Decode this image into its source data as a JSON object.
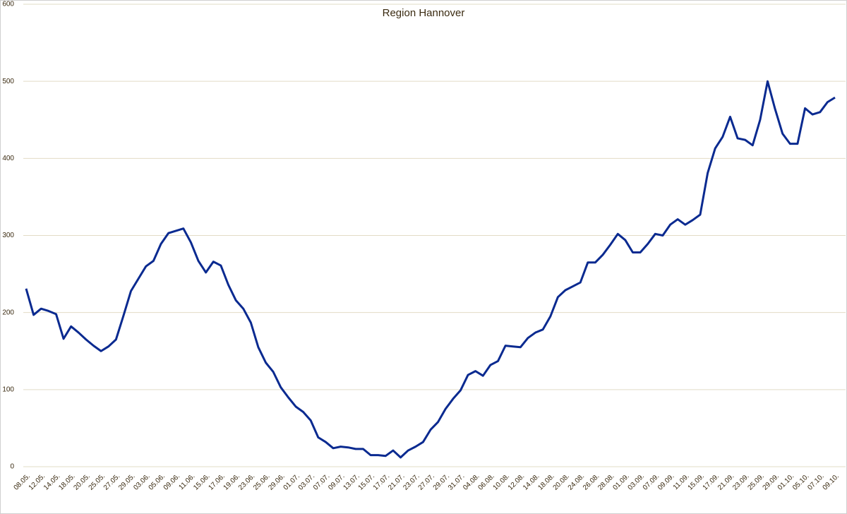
{
  "chart_data": {
    "type": "line",
    "title": "Region Hannover",
    "categories": [
      "08.05.",
      null,
      "12.05.",
      null,
      "14.05.",
      null,
      "18.05.",
      null,
      "20.05.",
      null,
      "25.05.",
      null,
      "27.05.",
      null,
      "29.05.",
      null,
      "03.06.",
      null,
      "05.06.",
      null,
      "09.06.",
      null,
      "11.06.",
      null,
      "15.06.",
      null,
      "17.06.",
      null,
      "19.06.",
      null,
      "23.06.",
      null,
      "25.06.",
      null,
      "29.06.",
      null,
      "01.07.",
      null,
      "03.07.",
      null,
      "07.07.",
      null,
      "09.07.",
      null,
      "13.07.",
      null,
      "15.07.",
      null,
      "17.07.",
      null,
      "21.07.",
      null,
      "23.07.",
      null,
      "27.07.",
      null,
      "29.07.",
      null,
      "31.07.",
      null,
      "04.08.",
      null,
      "06.08.",
      null,
      "10.08.",
      null,
      "12.08.",
      null,
      "14.08.",
      null,
      "18.08.",
      null,
      "20.08.",
      null,
      "24.08.",
      null,
      "26.08.",
      null,
      "28.08.",
      null,
      "01.09.",
      null,
      "03.09.",
      null,
      "07.09.",
      null,
      "09.09.",
      null,
      "11.09.",
      null,
      "15.09.",
      null,
      "17.09.",
      null,
      "21.09.",
      null,
      "23.09.",
      null,
      "25.09.",
      null,
      "29.09.",
      null,
      "01.10.",
      null,
      "05.10.",
      null,
      "07.10.",
      null,
      "09.10."
    ],
    "series": [
      {
        "color": "#0a2a90",
        "values": [
          231,
          197,
          205,
          202,
          198,
          166,
          182,
          174,
          165,
          157,
          150,
          156,
          165,
          196,
          228,
          244,
          260,
          267,
          289,
          303,
          306,
          309,
          291,
          267,
          252,
          266,
          261,
          236,
          216,
          205,
          187,
          155,
          135,
          123,
          103,
          90,
          78,
          71,
          60,
          38,
          32,
          24,
          26,
          25,
          23,
          23,
          15,
          15,
          14,
          21,
          12,
          21,
          26,
          32,
          48,
          58,
          75,
          88,
          99,
          119,
          124,
          118,
          132,
          137,
          157,
          156,
          155,
          167,
          174,
          178,
          195,
          220,
          229,
          234,
          239,
          265,
          265,
          275,
          288,
          302,
          294,
          278,
          278,
          289,
          302,
          300,
          314,
          321,
          314,
          320,
          327,
          381,
          413,
          428,
          454,
          426,
          424,
          417,
          450,
          500,
          464,
          432,
          419,
          419,
          465,
          457,
          460,
          473,
          479
        ]
      }
    ],
    "ylim": [
      0,
      600
    ],
    "yticks": [
      0,
      100,
      200,
      300,
      400,
      500,
      600
    ],
    "grid": true
  }
}
